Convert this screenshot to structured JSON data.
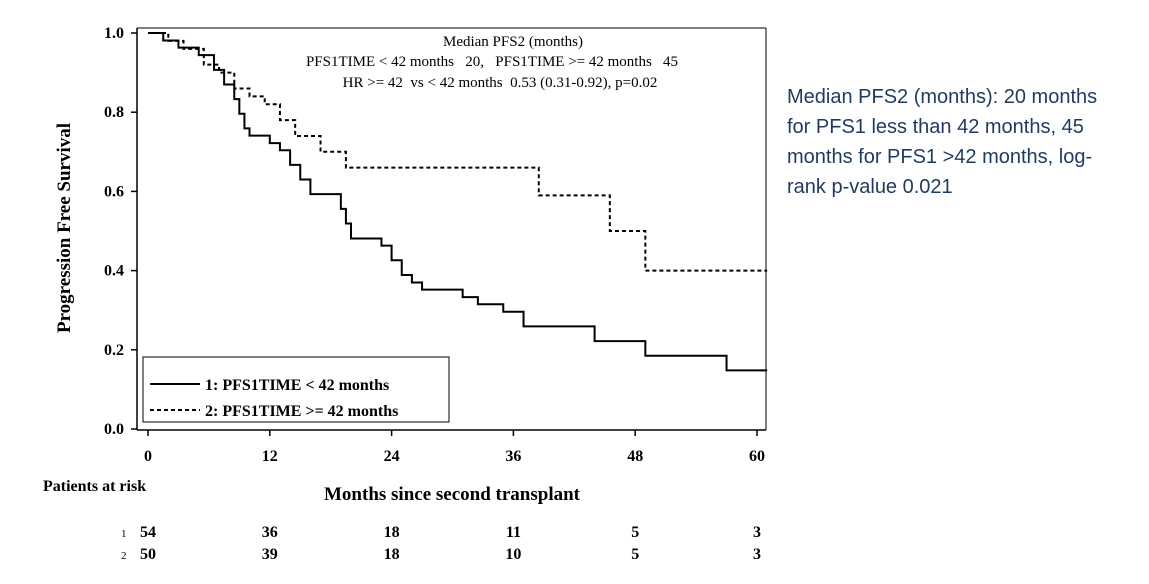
{
  "chart_data": {
    "type": "line",
    "subtype": "kaplan-meier step",
    "xlabel": "Months since second transplant",
    "ylabel": "Progression Free Survival",
    "xlim": [
      0,
      61
    ],
    "ylim": [
      0,
      1.0
    ],
    "x_ticks": [
      0,
      12,
      24,
      36,
      48,
      60
    ],
    "y_ticks": [
      0.0,
      0.2,
      0.4,
      0.6,
      0.8,
      1.0
    ],
    "y_tick_labels": [
      "0.0",
      "0.2",
      "0.4",
      "0.6",
      "0.8",
      "1.0"
    ],
    "grid": false,
    "legend_placement": "bottom-left",
    "annotation": {
      "title": "Median PFS2 (months)",
      "line1": "PFS1TIME < 42 months   20,   PFS1TIME >= 42 months   45",
      "line2": "HR >= 42  vs < 42 months  0.53 (0.31-0.92), p=0.02"
    },
    "series": [
      {
        "name": "1: PFS1TIME < 42 months",
        "style": "solid",
        "x": [
          0,
          1.5,
          3,
          5,
          6.5,
          7.5,
          8.5,
          9,
          9.5,
          10,
          12,
          13,
          14,
          15,
          16,
          19,
          19.5,
          20,
          23,
          24,
          25,
          26,
          27,
          31,
          32.5,
          35,
          37,
          44,
          49,
          57,
          61
        ],
        "y": [
          1.0,
          0.981,
          0.963,
          0.944,
          0.907,
          0.87,
          0.833,
          0.796,
          0.759,
          0.741,
          0.722,
          0.704,
          0.667,
          0.63,
          0.593,
          0.556,
          0.519,
          0.481,
          0.463,
          0.426,
          0.389,
          0.37,
          0.352,
          0.333,
          0.315,
          0.296,
          0.259,
          0.222,
          0.185,
          0.148,
          0.148
        ]
      },
      {
        "name": "2: PFS1TIME >= 42 months",
        "style": "dashed",
        "x": [
          0,
          2,
          3.5,
          5.5,
          7,
          8.5,
          10,
          11.5,
          13,
          14.5,
          17,
          19.5,
          38.5,
          45.5,
          49,
          61
        ],
        "y": [
          1.0,
          0.98,
          0.96,
          0.92,
          0.9,
          0.86,
          0.84,
          0.82,
          0.78,
          0.74,
          0.7,
          0.66,
          0.59,
          0.5,
          0.4,
          0.4
        ]
      }
    ],
    "at_risk": {
      "label": "Patients at risk",
      "times": [
        0,
        12,
        24,
        36,
        48,
        60
      ],
      "rows": [
        {
          "index": "1",
          "counts": [
            "54",
            "36",
            "18",
            "11",
            "5",
            "3"
          ]
        },
        {
          "index": "2",
          "counts": [
            "50",
            "39",
            "18",
            "10",
            "5",
            "3"
          ]
        }
      ]
    }
  },
  "side_note": "Median PFS2 (months): 20 months for PFS1 less than 42 months, 45 months for PFS1 >42 months, log-rank p-value 0.021",
  "colors": {
    "curve": "#000000",
    "side_note_text": "#1f3a5f"
  }
}
